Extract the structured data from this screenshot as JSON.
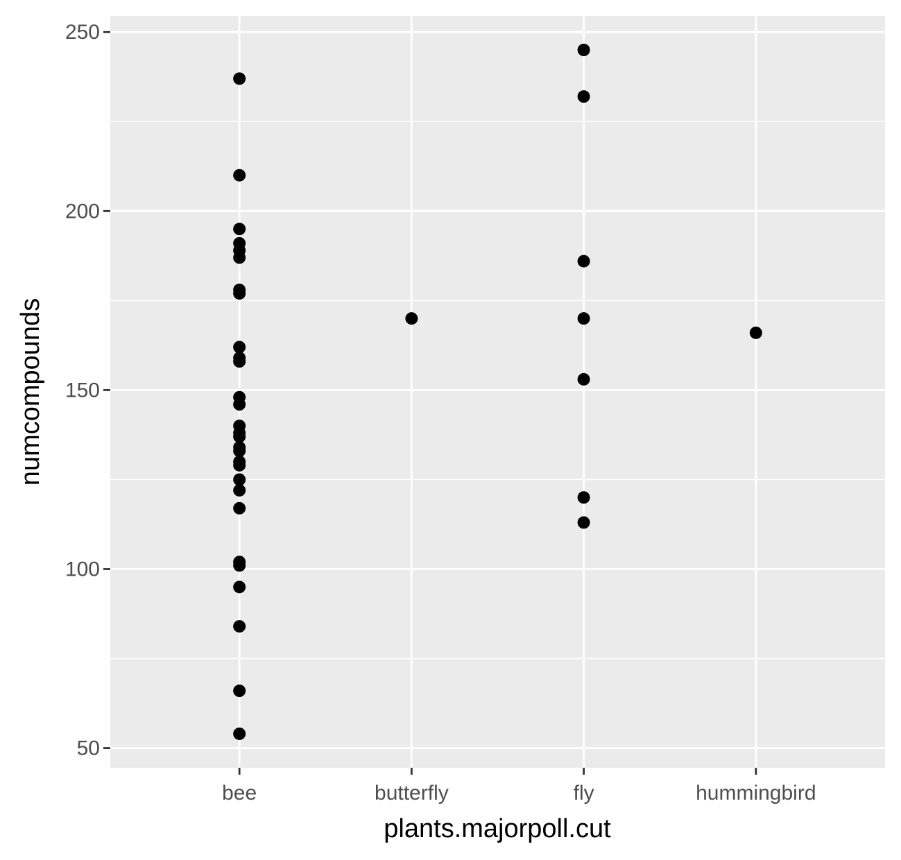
{
  "chart_data": {
    "type": "scatter",
    "title": "",
    "xlabel": "plants.majorpoll.cut",
    "ylabel": "numcompounds",
    "categories": [
      "bee",
      "butterfly",
      "fly",
      "hummingbird"
    ],
    "ylim": [
      44.5,
      254.5
    ],
    "yticks": [
      50,
      100,
      150,
      200,
      250
    ],
    "grid": true,
    "legend": "none",
    "colors": {
      "panel_background": "#ebebeb",
      "grid": "#ffffff",
      "point": "#000000",
      "tick_text": "#4d4d4d",
      "tick_mark": "#333333"
    },
    "points": [
      {
        "x": "bee",
        "y": 237
      },
      {
        "x": "bee",
        "y": 210
      },
      {
        "x": "bee",
        "y": 195
      },
      {
        "x": "bee",
        "y": 191
      },
      {
        "x": "bee",
        "y": 189
      },
      {
        "x": "bee",
        "y": 187
      },
      {
        "x": "bee",
        "y": 178
      },
      {
        "x": "bee",
        "y": 177
      },
      {
        "x": "bee",
        "y": 162
      },
      {
        "x": "bee",
        "y": 159
      },
      {
        "x": "bee",
        "y": 158
      },
      {
        "x": "bee",
        "y": 148
      },
      {
        "x": "bee",
        "y": 146
      },
      {
        "x": "bee",
        "y": 140
      },
      {
        "x": "bee",
        "y": 138
      },
      {
        "x": "bee",
        "y": 137
      },
      {
        "x": "bee",
        "y": 134
      },
      {
        "x": "bee",
        "y": 133
      },
      {
        "x": "bee",
        "y": 130
      },
      {
        "x": "bee",
        "y": 129
      },
      {
        "x": "bee",
        "y": 125
      },
      {
        "x": "bee",
        "y": 122
      },
      {
        "x": "bee",
        "y": 117
      },
      {
        "x": "bee",
        "y": 102
      },
      {
        "x": "bee",
        "y": 101
      },
      {
        "x": "bee",
        "y": 95
      },
      {
        "x": "bee",
        "y": 84
      },
      {
        "x": "bee",
        "y": 66
      },
      {
        "x": "bee",
        "y": 54
      },
      {
        "x": "butterfly",
        "y": 170
      },
      {
        "x": "fly",
        "y": 245
      },
      {
        "x": "fly",
        "y": 232
      },
      {
        "x": "fly",
        "y": 186
      },
      {
        "x": "fly",
        "y": 170
      },
      {
        "x": "fly",
        "y": 153
      },
      {
        "x": "fly",
        "y": 120
      },
      {
        "x": "fly",
        "y": 113
      },
      {
        "x": "hummingbird",
        "y": 166
      }
    ]
  }
}
